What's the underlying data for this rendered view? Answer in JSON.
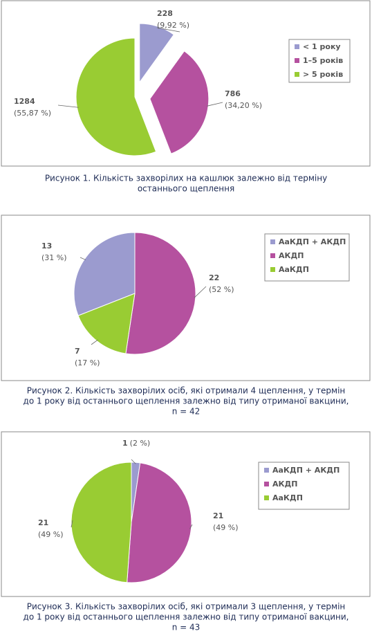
{
  "chart_data": [
    {
      "type": "pie",
      "categories": [
        "< 1 року",
        "1–5 років",
        "> 5 років"
      ],
      "values": [
        228,
        786,
        1284
      ],
      "percent_labels": [
        "(9,92 %)",
        "(34,20 %)",
        "(55,87 %)"
      ],
      "colors": [
        "#9b9bcf",
        "#b5519f",
        "#99cc33"
      ],
      "explode": [
        true,
        true,
        false
      ],
      "caption": [
        "Рисунок 1.  Кількість захворілих на кашлюк залежно від терміну",
        "останнього щеплення"
      ]
    },
    {
      "type": "pie",
      "categories": [
        "АаКДП + АКДП",
        "АКДП",
        "АаКДП"
      ],
      "values": [
        13,
        22,
        7
      ],
      "percent_labels": [
        "(31 %)",
        "(52 %)",
        "(17 %)"
      ],
      "colors": [
        "#9b9bcf",
        "#b5519f",
        "#99cc33"
      ],
      "explode": [
        false,
        false,
        false
      ],
      "caption": [
        "Рисунок 2.  Кількість захворілих осіб, які отримали 4 щеплення, у термін",
        "до 1 року від останнього щеплення залежно від типу отриманої вакцини,",
        "n = 42"
      ]
    },
    {
      "type": "pie",
      "categories": [
        "АаКДП + АКДП",
        "АКДП",
        "АаКДП"
      ],
      "values": [
        1,
        21,
        21
      ],
      "percent_labels": [
        "(2 %)",
        "(49 %)",
        "(49 %)"
      ],
      "colors": [
        "#9b9bcf",
        "#b5519f",
        "#99cc33"
      ],
      "explode": [
        false,
        false,
        false
      ],
      "caption": [
        "Рисунок 3.  Кількість захворілих осіб, які отримали 3 щеплення, у термін",
        "до 1 року від останнього щеплення залежно від типу отриманої вакцини,",
        "n = 43"
      ]
    }
  ]
}
